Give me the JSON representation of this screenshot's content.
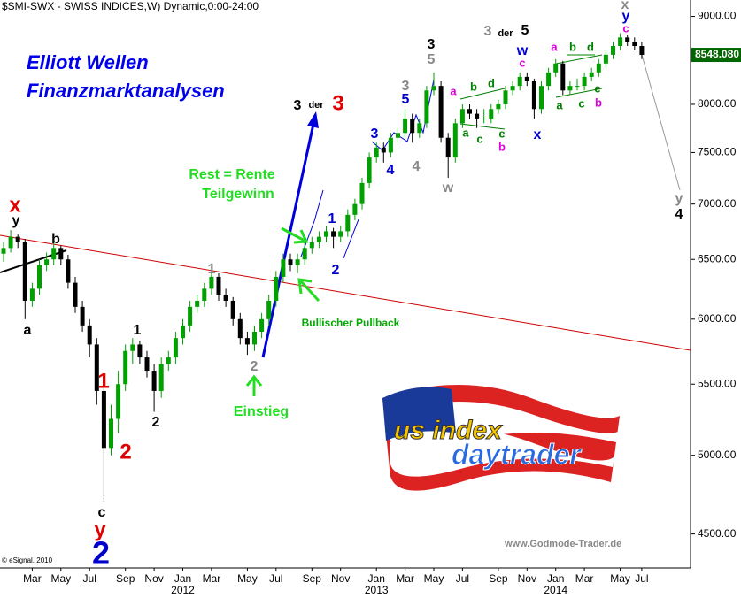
{
  "chart_data": {
    "type": "candlestick",
    "header": "$SMI-SWX - SWISS INDICES,W) Dynamic,0:00-24:00",
    "title": "Elliott Wellen",
    "subtitle": "Finanzmarktanalysen",
    "copyright": "© eSignal, 2010",
    "watermark": "www.Godmode-Trader.de",
    "logo": [
      "us index",
      "daytrader"
    ],
    "log_scale": true,
    "up_color": "#00a000",
    "down_color": "#000000",
    "ylim": [
      4300,
      9200
    ],
    "yticks": [
      {
        "value": 4500,
        "label": "4500.00"
      },
      {
        "value": 5000,
        "label": "5000.00"
      },
      {
        "value": 5500,
        "label": "5500.00"
      },
      {
        "value": 6000,
        "label": "6000.00"
      },
      {
        "value": 6500,
        "label": "6500.00"
      },
      {
        "value": 7000,
        "label": "7000.00"
      },
      {
        "value": 7500,
        "label": "7500.00"
      },
      {
        "value": 8000,
        "label": "8000.00"
      },
      {
        "value": 9000,
        "label": "9000.00"
      }
    ],
    "last_price": {
      "value": 8548.08,
      "label": "8548.080"
    },
    "categories": [
      null,
      null,
      null,
      null,
      "Mar",
      null,
      null,
      null,
      "May",
      null,
      null,
      null,
      "Jul",
      null,
      null,
      null,
      null,
      "Sep",
      null,
      null,
      null,
      "Nov",
      null,
      null,
      null,
      "Jan",
      null,
      null,
      null,
      "Mar",
      null,
      null,
      null,
      null,
      "May",
      null,
      null,
      null,
      "Jul",
      null,
      null,
      null,
      null,
      "Sep",
      null,
      null,
      null,
      "Nov",
      null,
      null,
      null,
      null,
      "Jan",
      null,
      null,
      null,
      "Mar",
      null,
      null,
      null,
      "May",
      null,
      null,
      null,
      "Jul",
      null,
      null,
      null,
      null,
      "Sep",
      null,
      null,
      null,
      "Nov",
      null,
      null,
      null,
      "Jan",
      null,
      null,
      null,
      "Mar",
      null,
      null,
      null,
      null,
      "May",
      null,
      null,
      "Jul"
    ],
    "year_labels": [
      "2012",
      "2013",
      "2014"
    ],
    "ohlc": [
      [
        6550,
        6650,
        6480,
        6600
      ],
      [
        6600,
        6760,
        6560,
        6700
      ],
      [
        6700,
        6720,
        6600,
        6650
      ],
      [
        6650,
        6680,
        6000,
        6150
      ],
      [
        6150,
        6300,
        6100,
        6250
      ],
      [
        6250,
        6500,
        6200,
        6450
      ],
      [
        6450,
        6560,
        6400,
        6500
      ],
      [
        6500,
        6650,
        6450,
        6600
      ],
      [
        6600,
        6620,
        6450,
        6500
      ],
      [
        6500,
        6540,
        6250,
        6300
      ],
      [
        6300,
        6350,
        6050,
        6100
      ],
      [
        6100,
        6150,
        5900,
        5950
      ],
      [
        5950,
        6000,
        5700,
        5800
      ],
      [
        5800,
        5850,
        5350,
        5450
      ],
      [
        5450,
        5500,
        4700,
        5050
      ],
      [
        5050,
        5350,
        5000,
        5250
      ],
      [
        5250,
        5600,
        5150,
        5500
      ],
      [
        5500,
        5800,
        5450,
        5750
      ],
      [
        5750,
        5850,
        5650,
        5800
      ],
      [
        5800,
        5830,
        5650,
        5700
      ],
      [
        5700,
        5750,
        5550,
        5600
      ],
      [
        5600,
        5650,
        5300,
        5450
      ],
      [
        5450,
        5700,
        5400,
        5650
      ],
      [
        5650,
        5750,
        5600,
        5700
      ],
      [
        5700,
        5900,
        5650,
        5850
      ],
      [
        5850,
        6000,
        5800,
        5950
      ],
      [
        5950,
        6150,
        5900,
        6100
      ],
      [
        6100,
        6200,
        6050,
        6150
      ],
      [
        6150,
        6300,
        6100,
        6250
      ],
      [
        6250,
        6400,
        6200,
        6350
      ],
      [
        6350,
        6380,
        6150,
        6200
      ],
      [
        6200,
        6250,
        6100,
        6150
      ],
      [
        6150,
        6180,
        5950,
        6000
      ],
      [
        6000,
        6050,
        5800,
        5850
      ],
      [
        5850,
        5900,
        5720,
        5800
      ],
      [
        5800,
        5950,
        5750,
        5900
      ],
      [
        5900,
        6050,
        5850,
        6000
      ],
      [
        6000,
        6200,
        5950,
        6150
      ],
      [
        6150,
        6400,
        6100,
        6350
      ],
      [
        6350,
        6550,
        6300,
        6500
      ],
      [
        6500,
        6550,
        6400,
        6450
      ],
      [
        6450,
        6550,
        6380,
        6500
      ],
      [
        6500,
        6650,
        6450,
        6600
      ],
      [
        6600,
        6700,
        6550,
        6650
      ],
      [
        6650,
        6750,
        6600,
        6700
      ],
      [
        6700,
        6800,
        6650,
        6750
      ],
      [
        6750,
        6780,
        6600,
        6700
      ],
      [
        6700,
        6800,
        6650,
        6750
      ],
      [
        6750,
        6950,
        6700,
        6900
      ],
      [
        6900,
        7050,
        6850,
        7000
      ],
      [
        7000,
        7250,
        6950,
        7200
      ],
      [
        7200,
        7500,
        7150,
        7450
      ],
      [
        7450,
        7600,
        7400,
        7550
      ],
      [
        7550,
        7600,
        7400,
        7500
      ],
      [
        7500,
        7700,
        7450,
        7650
      ],
      [
        7650,
        7750,
        7600,
        7700
      ],
      [
        7700,
        7950,
        7650,
        7850
      ],
      [
        7850,
        7900,
        7600,
        7700
      ],
      [
        7700,
        7850,
        7650,
        7800
      ],
      [
        7800,
        8200,
        7750,
        8150
      ],
      [
        8150,
        8350,
        8100,
        8200
      ],
      [
        8200,
        8250,
        7600,
        7650
      ],
      [
        7650,
        7700,
        7250,
        7450
      ],
      [
        7450,
        7850,
        7400,
        7800
      ],
      [
        7800,
        8000,
        7750,
        7950
      ],
      [
        7950,
        8000,
        7850,
        7900
      ],
      [
        7900,
        7950,
        7750,
        7850
      ],
      [
        7850,
        7950,
        7800,
        7850
      ],
      [
        7850,
        8000,
        7800,
        7950
      ],
      [
        7950,
        8050,
        7900,
        8000
      ],
      [
        8000,
        8200,
        7950,
        8150
      ],
      [
        8150,
        8250,
        8100,
        8200
      ],
      [
        8200,
        8350,
        8150,
        8300
      ],
      [
        8300,
        8350,
        8200,
        8250
      ],
      [
        8250,
        8280,
        7850,
        7950
      ],
      [
        7950,
        8250,
        7900,
        8200
      ],
      [
        8200,
        8400,
        8150,
        8350
      ],
      [
        8350,
        8500,
        8300,
        8450
      ],
      [
        8450,
        8480,
        8100,
        8150
      ],
      [
        8150,
        8250,
        8100,
        8200
      ],
      [
        8200,
        8280,
        8150,
        8200
      ],
      [
        8200,
        8350,
        8150,
        8300
      ],
      [
        8300,
        8400,
        8250,
        8350
      ],
      [
        8350,
        8500,
        8300,
        8450
      ],
      [
        8450,
        8600,
        8400,
        8550
      ],
      [
        8550,
        8700,
        8500,
        8650
      ],
      [
        8650,
        8800,
        8600,
        8750
      ],
      [
        8750,
        8780,
        8650,
        8700
      ],
      [
        8700,
        8750,
        8600,
        8650
      ],
      [
        8650,
        8700,
        8500,
        8548.08
      ]
    ],
    "annotations": [
      "x",
      "y",
      "b",
      "a",
      "1",
      "2",
      "c",
      "y",
      "2",
      "1",
      "2",
      "1",
      "2",
      "Einstieg",
      "Bullischer Pullback",
      "Rest = Rente",
      "Teilgewinn",
      "3",
      "der",
      "3",
      "1",
      "2",
      "3",
      "4",
      "5",
      "3",
      "4",
      "w",
      "5",
      "3",
      "3",
      "der",
      "5",
      "w",
      "c",
      "x",
      "a",
      "b",
      "d",
      "a",
      "c",
      "e",
      "b",
      "a",
      "b",
      "d",
      "a",
      "c",
      "e",
      "b",
      "x",
      "y",
      "c",
      "y",
      "4"
    ]
  }
}
